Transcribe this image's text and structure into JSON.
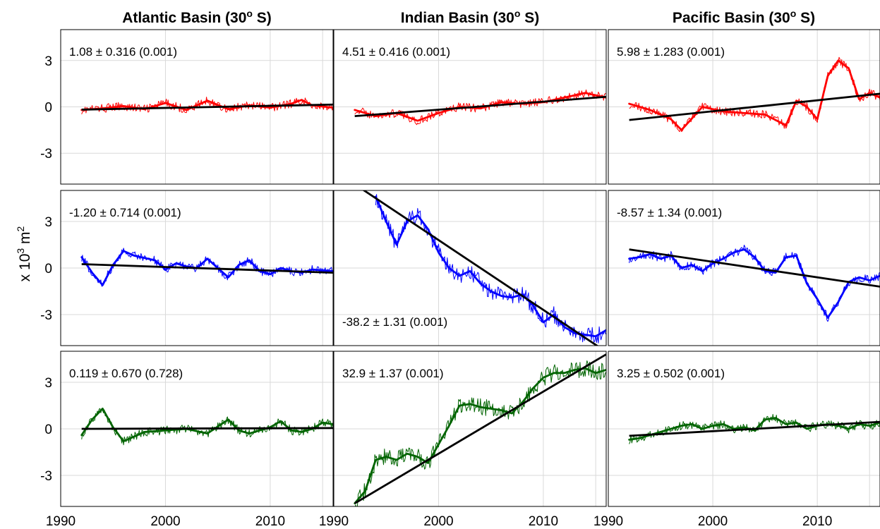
{
  "figure": {
    "column_titles": [
      {
        "base": "Atlantic Basin (30",
        "sup": "o",
        "tail": " S)"
      },
      {
        "base": "Indian Basin (30",
        "sup": "o",
        "tail": " S)"
      },
      {
        "base": "Pacific Basin (30",
        "sup": "o",
        "tail": " S)"
      }
    ],
    "ylabel": {
      "base": "x 10",
      "sup": "3",
      "mid": " m",
      "sup2": "2"
    }
  },
  "chart_data": {
    "type": "line",
    "layout": "3x3 small multiples",
    "grid": true,
    "xlim": [
      1990,
      2016
    ],
    "ylim": [
      -5,
      5
    ],
    "xticks": [
      1990,
      2000,
      2010
    ],
    "xtick_labels": [
      "1990",
      "2000",
      "2010"
    ],
    "yticks": [
      -3,
      0,
      3
    ],
    "ytick_labels": [
      "-3",
      "0",
      "3"
    ],
    "colors": {
      "top": "#ff0000",
      "middle": "#0000ff",
      "bottom": "#006400",
      "trend": "#000000"
    },
    "panels": [
      {
        "row": 0,
        "col": 0,
        "annotation": "1.08 ± 0.316 (0.001)",
        "trend": [
          [
            1992,
            -0.18
          ],
          [
            2016,
            0.15
          ]
        ],
        "annot_pos": "top",
        "smooth": [
          [
            1992,
            -0.2
          ],
          [
            1994,
            -0.1
          ],
          [
            1996,
            0.05
          ],
          [
            1998,
            -0.15
          ],
          [
            2000,
            0.25
          ],
          [
            2002,
            -0.2
          ],
          [
            2004,
            0.4
          ],
          [
            2006,
            -0.15
          ],
          [
            2008,
            0.1
          ],
          [
            2010,
            -0.05
          ],
          [
            2012,
            0.2
          ],
          [
            2013,
            0.45
          ],
          [
            2014,
            0.1
          ],
          [
            2016,
            -0.05
          ]
        ]
      },
      {
        "row": 0,
        "col": 1,
        "annotation": "4.51 ± 0.416 (0.001)",
        "trend": [
          [
            1992,
            -0.6
          ],
          [
            2016,
            0.65
          ]
        ],
        "annot_pos": "top",
        "smooth": [
          [
            1992,
            -0.2
          ],
          [
            1994,
            -0.6
          ],
          [
            1996,
            -0.4
          ],
          [
            1998,
            -0.9
          ],
          [
            2000,
            -0.4
          ],
          [
            2002,
            0.0
          ],
          [
            2004,
            -0.1
          ],
          [
            2006,
            0.3
          ],
          [
            2008,
            0.2
          ],
          [
            2010,
            0.3
          ],
          [
            2012,
            0.6
          ],
          [
            2014,
            0.9
          ],
          [
            2016,
            0.6
          ]
        ]
      },
      {
        "row": 0,
        "col": 2,
        "annotation": "5.98 ± 1.283 (0.001)",
        "trend": [
          [
            1992,
            -0.85
          ],
          [
            2016,
            0.85
          ]
        ],
        "annot_pos": "top",
        "smooth": [
          [
            1992,
            0.2
          ],
          [
            1994,
            -0.2
          ],
          [
            1996,
            -0.8
          ],
          [
            1997,
            -1.5
          ],
          [
            1999,
            0.0
          ],
          [
            2001,
            -0.3
          ],
          [
            2003,
            -0.4
          ],
          [
            2005,
            -0.5
          ],
          [
            2007,
            -1.2
          ],
          [
            2008,
            0.4
          ],
          [
            2009,
            0.0
          ],
          [
            2010,
            -0.8
          ],
          [
            2011,
            2.0
          ],
          [
            2012,
            3.0
          ],
          [
            2013,
            2.5
          ],
          [
            2014,
            0.5
          ],
          [
            2015,
            0.9
          ],
          [
            2016,
            0.6
          ]
        ]
      },
      {
        "row": 1,
        "col": 0,
        "annotation": "-1.20 ± 0.714 (0.001)",
        "trend": [
          [
            1992,
            0.25
          ],
          [
            2016,
            -0.3
          ]
        ],
        "annot_pos": "top",
        "smooth": [
          [
            1992,
            0.7
          ],
          [
            1993,
            -0.3
          ],
          [
            1994,
            -1.1
          ],
          [
            1995,
            0.2
          ],
          [
            1996,
            1.1
          ],
          [
            1997,
            0.8
          ],
          [
            1999,
            0.5
          ],
          [
            2000,
            -0.1
          ],
          [
            2001,
            0.3
          ],
          [
            2002,
            0.1
          ],
          [
            2003,
            0.0
          ],
          [
            2004,
            0.6
          ],
          [
            2005,
            0.0
          ],
          [
            2006,
            -0.6
          ],
          [
            2007,
            0.2
          ],
          [
            2008,
            0.5
          ],
          [
            2009,
            -0.2
          ],
          [
            2010,
            -0.4
          ],
          [
            2011,
            0.0
          ],
          [
            2012,
            -0.2
          ],
          [
            2013,
            -0.3
          ],
          [
            2014,
            -0.1
          ],
          [
            2016,
            -0.2
          ]
        ]
      },
      {
        "row": 1,
        "col": 1,
        "annotation": "-38.2 ± 1.31 (0.001)",
        "trend": [
          [
            1992,
            5.4
          ],
          [
            2016,
            -5.4
          ]
        ],
        "annot_pos": "bottom",
        "smooth": [
          [
            1994,
            4.6
          ],
          [
            1995,
            3.0
          ],
          [
            1996,
            1.5
          ],
          [
            1997,
            3.0
          ],
          [
            1998,
            3.4
          ],
          [
            1999,
            2.5
          ],
          [
            2000,
            1.0
          ],
          [
            2001,
            0.0
          ],
          [
            2002,
            -0.5
          ],
          [
            2003,
            -0.2
          ],
          [
            2004,
            -1.0
          ],
          [
            2005,
            -1.5
          ],
          [
            2006,
            -1.8
          ],
          [
            2007,
            -1.9
          ],
          [
            2008,
            -1.7
          ],
          [
            2009,
            -2.4
          ],
          [
            2010,
            -3.5
          ],
          [
            2011,
            -3.0
          ],
          [
            2012,
            -3.8
          ],
          [
            2013,
            -4.2
          ],
          [
            2014,
            -4.3
          ],
          [
            2015,
            -4.4
          ],
          [
            2016,
            -4.0
          ]
        ]
      },
      {
        "row": 1,
        "col": 2,
        "annotation": "-8.57 ± 1.34 (0.001)",
        "trend": [
          [
            1992,
            1.2
          ],
          [
            2016,
            -1.2
          ]
        ],
        "annot_pos": "top",
        "smooth": [
          [
            1992,
            0.6
          ],
          [
            1993,
            0.7
          ],
          [
            1994,
            0.9
          ],
          [
            1995,
            0.6
          ],
          [
            1996,
            0.8
          ],
          [
            1997,
            0.0
          ],
          [
            1998,
            0.2
          ],
          [
            1999,
            -0.2
          ],
          [
            2000,
            0.3
          ],
          [
            2001,
            0.6
          ],
          [
            2002,
            1.0
          ],
          [
            2003,
            1.2
          ],
          [
            2004,
            0.7
          ],
          [
            2005,
            -0.2
          ],
          [
            2006,
            -0.3
          ],
          [
            2007,
            0.7
          ],
          [
            2008,
            0.8
          ],
          [
            2009,
            -1.0
          ],
          [
            2010,
            -2.0
          ],
          [
            2011,
            -3.2
          ],
          [
            2012,
            -2.2
          ],
          [
            2013,
            -0.9
          ],
          [
            2014,
            -0.6
          ],
          [
            2015,
            -0.8
          ],
          [
            2016,
            -0.5
          ]
        ]
      },
      {
        "row": 2,
        "col": 0,
        "annotation": "0.119 ± 0.670 (0.728)",
        "trend": [
          [
            1992,
            0.0
          ],
          [
            2016,
            0.05
          ]
        ],
        "annot_pos": "top",
        "smooth": [
          [
            1992,
            -0.4
          ],
          [
            1993,
            0.6
          ],
          [
            1994,
            1.3
          ],
          [
            1995,
            0.1
          ],
          [
            1996,
            -0.8
          ],
          [
            1997,
            -0.5
          ],
          [
            1998,
            -0.2
          ],
          [
            2000,
            -0.1
          ],
          [
            2002,
            0.0
          ],
          [
            2004,
            -0.3
          ],
          [
            2006,
            0.6
          ],
          [
            2007,
            -0.1
          ],
          [
            2008,
            -0.3
          ],
          [
            2010,
            0.1
          ],
          [
            2011,
            0.5
          ],
          [
            2012,
            -0.1
          ],
          [
            2013,
            -0.2
          ],
          [
            2014,
            0.0
          ],
          [
            2015,
            0.4
          ],
          [
            2016,
            0.3
          ]
        ]
      },
      {
        "row": 2,
        "col": 1,
        "annotation": "32.9 ± 1.37 (0.001)",
        "trend": [
          [
            1992,
            -4.8
          ],
          [
            2016,
            4.8
          ]
        ],
        "annot_pos": "top",
        "smooth": [
          [
            1992,
            -4.8
          ],
          [
            1993,
            -4.0
          ],
          [
            1994,
            -2.0
          ],
          [
            1995,
            -1.8
          ],
          [
            1996,
            -2.0
          ],
          [
            1997,
            -1.6
          ],
          [
            1998,
            -1.8
          ],
          [
            1999,
            -2.2
          ],
          [
            2000,
            -1.0
          ],
          [
            2001,
            0.2
          ],
          [
            2002,
            1.5
          ],
          [
            2003,
            1.6
          ],
          [
            2004,
            1.4
          ],
          [
            2005,
            1.3
          ],
          [
            2006,
            1.2
          ],
          [
            2007,
            1.0
          ],
          [
            2008,
            1.7
          ],
          [
            2009,
            2.6
          ],
          [
            2010,
            3.3
          ],
          [
            2011,
            3.6
          ],
          [
            2012,
            3.6
          ],
          [
            2013,
            3.8
          ],
          [
            2014,
            3.9
          ],
          [
            2015,
            3.6
          ],
          [
            2016,
            3.8
          ]
        ]
      },
      {
        "row": 2,
        "col": 2,
        "annotation": "3.25 ± 0.502 (0.001)",
        "trend": [
          [
            1992,
            -0.45
          ],
          [
            2016,
            0.45
          ]
        ],
        "annot_pos": "top",
        "smooth": [
          [
            1992,
            -0.7
          ],
          [
            1993,
            -0.6
          ],
          [
            1994,
            -0.4
          ],
          [
            1995,
            -0.2
          ],
          [
            1996,
            0.0
          ],
          [
            1997,
            0.2
          ],
          [
            1998,
            0.3
          ],
          [
            1999,
            0.0
          ],
          [
            2000,
            0.2
          ],
          [
            2001,
            0.3
          ],
          [
            2002,
            0.0
          ],
          [
            2003,
            0.1
          ],
          [
            2004,
            -0.1
          ],
          [
            2005,
            0.6
          ],
          [
            2006,
            0.7
          ],
          [
            2007,
            0.3
          ],
          [
            2008,
            0.4
          ],
          [
            2009,
            0.0
          ],
          [
            2010,
            0.2
          ],
          [
            2011,
            0.3
          ],
          [
            2012,
            0.2
          ],
          [
            2013,
            0.0
          ],
          [
            2014,
            0.3
          ],
          [
            2015,
            0.2
          ],
          [
            2016,
            0.4
          ]
        ]
      }
    ]
  }
}
